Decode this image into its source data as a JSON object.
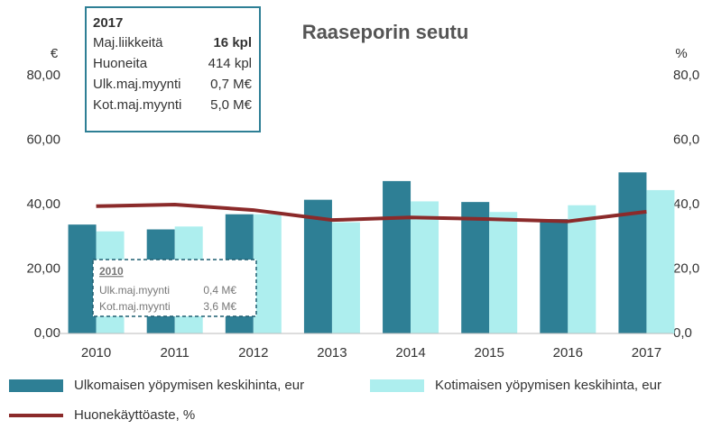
{
  "chart_data": {
    "type": "bar_line",
    "title": "Raaseporin seutu",
    "y_label": "€",
    "y2_label": "%",
    "categories": [
      "2010",
      "2011",
      "2012",
      "2013",
      "2014",
      "2015",
      "2016",
      "2017"
    ],
    "series": [
      {
        "name": "Ulkomaisen yöpymisen keskihinta, eur",
        "color": "#2e7f95",
        "type": "bar",
        "values": [
          33.8,
          32.3,
          37,
          41.5,
          47.3,
          40.8,
          35.5,
          50
        ]
      },
      {
        "name": "Kotimaisen yöpymisen keskihinta, eur",
        "color": "#adeeee",
        "type": "bar",
        "values": [
          31.7,
          33.2,
          37,
          34.5,
          41,
          37.7,
          39.8,
          44.5
        ]
      },
      {
        "name": "Huonekäyttöaste, %",
        "color": "#8b2a2a",
        "type": "line",
        "axis": "y2",
        "values": [
          39.5,
          40,
          38.3,
          35.2,
          36,
          35.5,
          34.8,
          37.8
        ]
      }
    ],
    "ylim": [
      0,
      80
    ],
    "yticks": [
      {
        "value": 0,
        "label": "0,00"
      },
      {
        "value": 20,
        "label": "20,00"
      },
      {
        "value": 40,
        "label": "40,00"
      },
      {
        "value": 60,
        "label": "60,00"
      },
      {
        "value": 80,
        "label": "80,00"
      }
    ],
    "y2lim": [
      0,
      80
    ],
    "y2ticks": [
      {
        "value": 0,
        "label": "0,0"
      },
      {
        "value": 20,
        "label": "20,0"
      },
      {
        "value": 40,
        "label": "40,0"
      },
      {
        "value": 60,
        "label": "60,0"
      },
      {
        "value": 80,
        "label": "80,0"
      }
    ],
    "grid": false,
    "annotations": [
      {
        "title": "2017",
        "rows": [
          {
            "label": "Maj.liikkeitä",
            "value": "16 kpl"
          },
          {
            "label": "Huoneita",
            "value": "414 kpl"
          },
          {
            "label": "Ulk.maj.myynti",
            "value": "0,7 M€"
          },
          {
            "label": "Kot.maj.myynti",
            "value": "5,0 M€"
          }
        ]
      },
      {
        "title": "2010",
        "rows": [
          {
            "label": "Ulk.maj.myynti",
            "value": "0,4 M€"
          },
          {
            "label": "Kot.maj.myynti",
            "value": "3,6 M€"
          }
        ]
      }
    ]
  }
}
